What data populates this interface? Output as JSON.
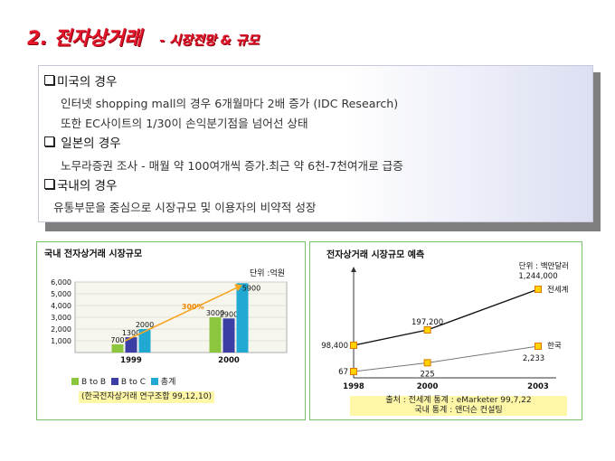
{
  "header": {
    "title_main": "2. 전자상거래",
    "title_sub": "- 시장전망 & 규모"
  },
  "panel": {
    "lines": [
      {
        "type": "head",
        "text": "미국의 경우"
      },
      {
        "type": "body",
        "text": "인터넷 shopping mall의 경우 6개월마다 2배 증가 (IDC Research)"
      },
      {
        "type": "body",
        "text": "또한 EC사이트의 1/30이 손익분기점을 넘어선 상태"
      },
      {
        "type": "head",
        "text": " 일본의 경우"
      },
      {
        "type": "body",
        "text": "노무라증권 조사 - 매월 약 100여개씩  증가.최근 약 6천-7천여개로 급증"
      },
      {
        "type": "head",
        "text": "국내의 경우"
      },
      {
        "type": "body",
        "text": "유통부문을 중심으로 시장규모 및 이용자의 비약적 성장"
      }
    ]
  },
  "chart_data": [
    {
      "type": "bar",
      "title": "국내 전자상거래 시장규모",
      "unit_label": "단위 :억원",
      "categories": [
        "1999",
        "2000"
      ],
      "series": [
        {
          "name": "B to B",
          "values": [
            700,
            3000
          ],
          "color": "#8cc63f"
        },
        {
          "name": "B to C",
          "values": [
            1300,
            2900
          ],
          "color": "#3b3fa5"
        },
        {
          "name": "총계",
          "values": [
            2000,
            5900
          ],
          "color": "#21a9d4"
        }
      ],
      "value_labels": [
        [
          "700",
          "1300",
          "2000"
        ],
        [
          "3000",
          "2900",
          "5900"
        ]
      ],
      "yticks": [
        "6,000",
        "5,000",
        "4,000",
        "3,000",
        "2,000",
        "1,000"
      ],
      "ylim": [
        0,
        6000
      ],
      "annotation": "300%",
      "source": "(한국전자상거래 연구조합 99,12,10)"
    },
    {
      "type": "line",
      "title": "전자상거래 시장규모 예측",
      "unit_label": "단위 : 백만달러",
      "x": [
        "1998",
        "2000",
        "2003"
      ],
      "series": [
        {
          "name": "전세계",
          "values": [
            98400,
            197200,
            1244000
          ],
          "labels": [
            "98,400",
            "197,200",
            "1,244,000"
          ]
        },
        {
          "name": "한국",
          "values": [
            67,
            225,
            2233
          ],
          "labels": [
            "67",
            "225",
            "2,233"
          ]
        }
      ],
      "source_lines": [
        "출처 : 전세계 통계 : eMarketer 99,7,22",
        "국내 통계 : 앤더슨 컨설팅"
      ]
    }
  ],
  "colors": {
    "title": "#e5162a",
    "accent_arrow": "#f5a623",
    "panel_border": "#7ac36a",
    "note_bg": "#fff7a8"
  }
}
